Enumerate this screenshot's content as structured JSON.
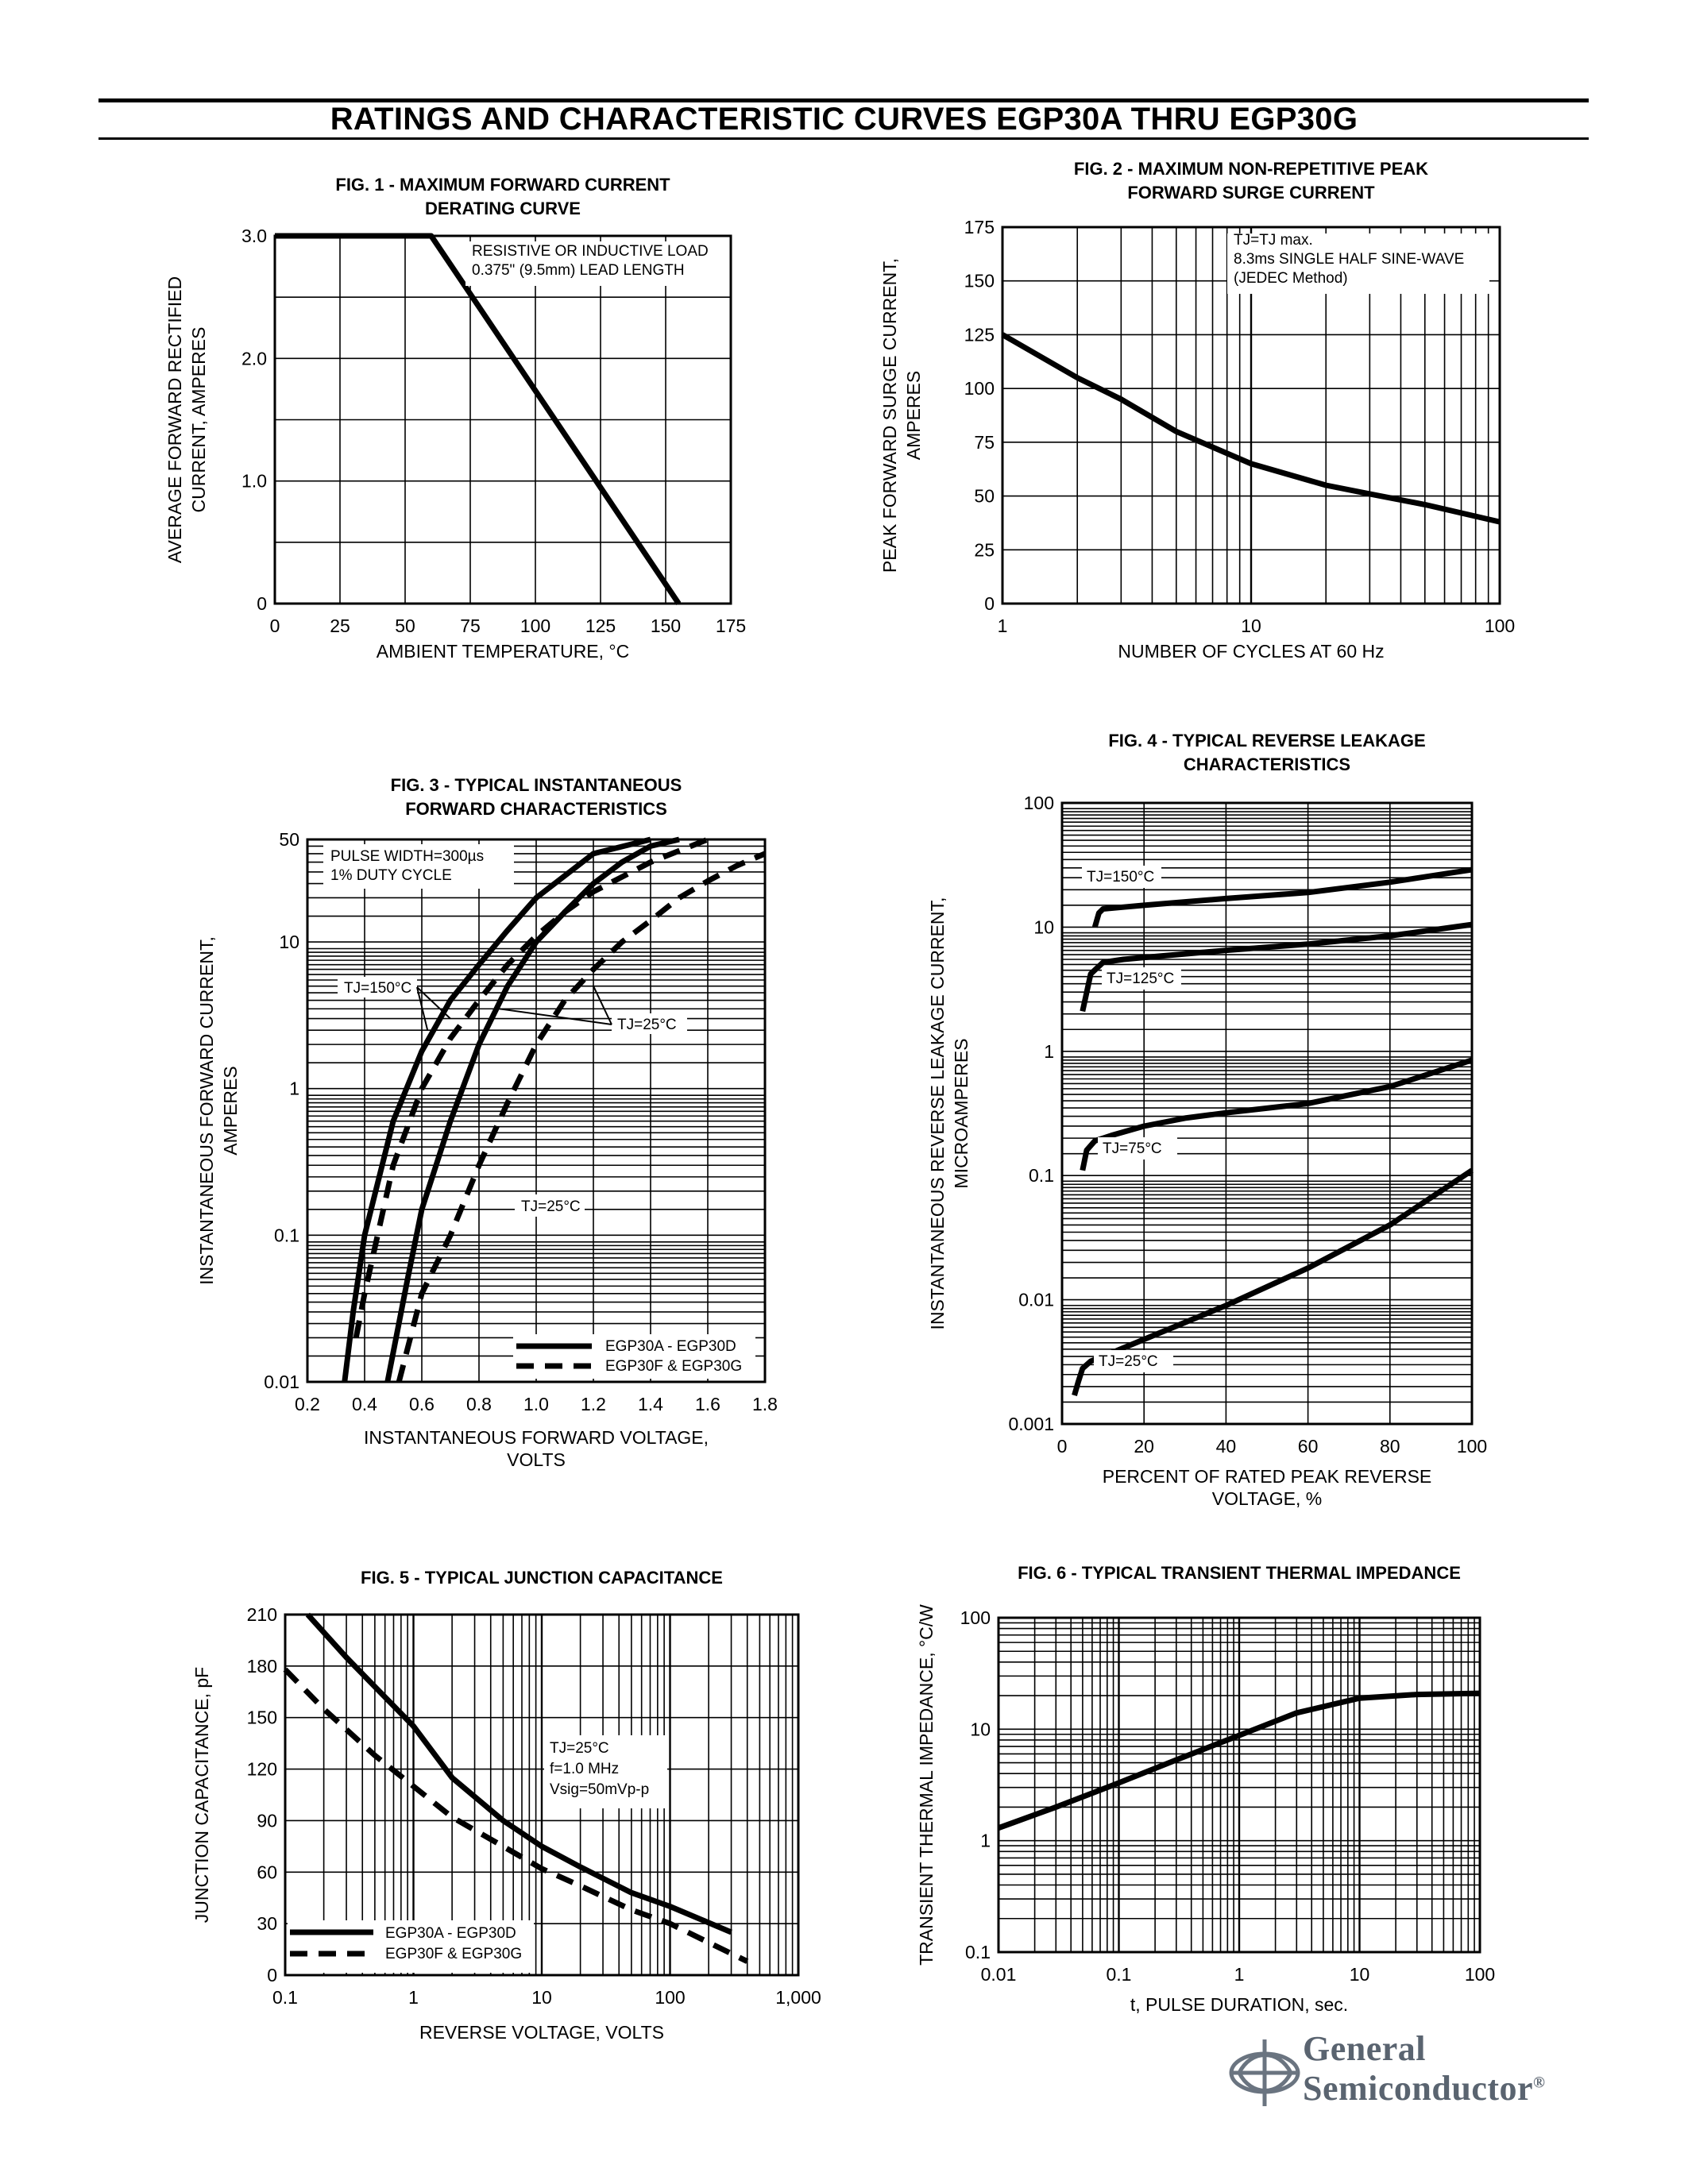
{
  "page": {
    "title": "RATINGS AND CHARACTERISTIC CURVES EGP30A THRU EGP30G",
    "brand_line1": "General",
    "brand_line2": "Semiconductor",
    "brand_mark": "®"
  },
  "chart_data": [
    {
      "id": "fig1",
      "type": "line",
      "title_lines": [
        "FIG. 1 - MAXIMUM FORWARD CURRENT",
        "DERATING CURVE"
      ],
      "xlabel": "AMBIENT TEMPERATURE, °C",
      "ylabel_lines": [
        "AVERAGE FORWARD RECTIFIED",
        "CURRENT, AMPERES"
      ],
      "xscale": "linear",
      "yscale": "linear",
      "xlim": [
        0,
        175
      ],
      "ylim": [
        0,
        3.0
      ],
      "xticks": [
        0,
        25,
        50,
        75,
        100,
        125,
        150,
        175
      ],
      "xtick_labels": [
        "0",
        "25",
        "50",
        "75",
        "100",
        "125",
        "150",
        "175"
      ],
      "yticks": [
        0,
        1.0,
        2.0,
        3.0
      ],
      "ytick_labels": [
        "0",
        "1.0",
        "2.0",
        "3.0"
      ],
      "grid_x": [
        25,
        50,
        75,
        100,
        125,
        150
      ],
      "grid_y": [
        0.5,
        1.0,
        1.5,
        2.0,
        2.5
      ],
      "annotations": [
        "RESISTIVE OR INDUCTIVE LOAD",
        "0.375\" (9.5mm) LEAD LENGTH"
      ],
      "series": [
        {
          "name": "derating",
          "style": "solid",
          "x": [
            0,
            60,
            155
          ],
          "y": [
            3.0,
            3.0,
            0
          ]
        }
      ]
    },
    {
      "id": "fig2",
      "type": "line",
      "title_lines": [
        "FIG. 2 - MAXIMUM NON-REPETITIVE PEAK",
        "FORWARD SURGE CURRENT"
      ],
      "xlabel": "NUMBER OF CYCLES AT 60 Hz",
      "ylabel_lines": [
        "PEAK FORWARD SURGE CURRENT,",
        "AMPERES"
      ],
      "xscale": "log",
      "yscale": "linear",
      "xlim": [
        1,
        100
      ],
      "ylim": [
        0,
        175
      ],
      "xticks": [
        1,
        10,
        100
      ],
      "xtick_labels": [
        "1",
        "10",
        "100"
      ],
      "yticks": [
        0,
        25,
        50,
        75,
        100,
        125,
        150,
        175
      ],
      "ytick_labels": [
        "0",
        "25",
        "50",
        "75",
        "100",
        "125",
        "150",
        "175"
      ],
      "annotations": [
        "TJ=TJ max.",
        "8.3ms SINGLE HALF SINE-WAVE",
        "(JEDEC Method)"
      ],
      "series": [
        {
          "name": "surge",
          "style": "solid",
          "x": [
            1,
            2,
            3,
            5,
            10,
            20,
            30,
            50,
            100
          ],
          "y": [
            125,
            105,
            95,
            80,
            65,
            55,
            51,
            46,
            38
          ]
        }
      ]
    },
    {
      "id": "fig3",
      "type": "line",
      "title_lines": [
        "FIG. 3 - TYPICAL INSTANTANEOUS",
        "FORWARD CHARACTERISTICS"
      ],
      "xlabel_lines": [
        "INSTANTANEOUS FORWARD VOLTAGE,",
        "VOLTS"
      ],
      "ylabel_lines": [
        "INSTANTANEOUS FORWARD CURRENT,",
        "AMPERES"
      ],
      "xscale": "linear",
      "yscale": "log",
      "xlim": [
        0.2,
        1.8
      ],
      "ylim": [
        0.01,
        50
      ],
      "xticks": [
        0.2,
        0.4,
        0.6,
        0.8,
        1.0,
        1.2,
        1.4,
        1.6,
        1.8
      ],
      "xtick_labels": [
        "0.2",
        "0.4",
        "0.6",
        "0.8",
        "1.0",
        "1.2",
        "1.4",
        "1.6",
        "1.8"
      ],
      "yticks": [
        0.01,
        0.1,
        1,
        10,
        50
      ],
      "ytick_labels": [
        "0.01",
        "0.1",
        "1",
        "10",
        "50"
      ],
      "annotations": [
        "PULSE WIDTH=300µs",
        "1% DUTY CYCLE",
        "TJ=150°C",
        "TJ=25°C",
        "TJ=25°C"
      ],
      "legend": [
        "EGP30A - EGP30D",
        "EGP30F & EGP30G"
      ],
      "series": [
        {
          "name": "EGP30A - EGP30D, TJ=150°C",
          "style": "solid",
          "x": [
            0.33,
            0.36,
            0.4,
            0.5,
            0.6,
            0.7,
            0.8,
            0.9,
            1.0,
            1.2,
            1.4
          ],
          "y": [
            0.01,
            0.03,
            0.1,
            0.6,
            1.8,
            4.0,
            7.0,
            12,
            20,
            40,
            50
          ]
        },
        {
          "name": "EGP30A - EGP30D, TJ=25°C",
          "style": "solid",
          "x": [
            0.48,
            0.55,
            0.6,
            0.7,
            0.8,
            0.9,
            1.0,
            1.1,
            1.2,
            1.3,
            1.4,
            1.5
          ],
          "y": [
            0.01,
            0.05,
            0.15,
            0.6,
            2.0,
            5.0,
            10,
            16,
            25,
            35,
            45,
            50
          ]
        },
        {
          "name": "EGP30F & EGP30G, TJ=150°C",
          "style": "dashed",
          "x": [
            0.37,
            0.4,
            0.5,
            0.6,
            0.7,
            0.8,
            0.9,
            1.0,
            1.1,
            1.2,
            1.4,
            1.6
          ],
          "y": [
            0.02,
            0.04,
            0.3,
            1.0,
            2.2,
            4.0,
            7.0,
            11,
            16,
            22,
            35,
            50
          ]
        },
        {
          "name": "EGP30F & EGP30G, TJ=25°C",
          "style": "dashed",
          "x": [
            0.52,
            0.6,
            0.7,
            0.8,
            0.9,
            1.0,
            1.1,
            1.2,
            1.3,
            1.4,
            1.5,
            1.6,
            1.7,
            1.8
          ],
          "y": [
            0.01,
            0.04,
            0.1,
            0.3,
            0.8,
            2.0,
            4.0,
            6.5,
            10,
            14,
            20,
            26,
            33,
            40
          ]
        }
      ]
    },
    {
      "id": "fig4",
      "type": "line",
      "title_lines": [
        "FIG. 4 - TYPICAL REVERSE LEAKAGE",
        "CHARACTERISTICS"
      ],
      "xlabel_lines": [
        "PERCENT OF RATED PEAK REVERSE",
        "VOLTAGE, %"
      ],
      "ylabel_lines": [
        "INSTANTANEOUS REVERSE LEAKAGE CURRENT,",
        "MICROAMPERES"
      ],
      "xscale": "linear",
      "yscale": "log",
      "xlim": [
        0,
        100
      ],
      "ylim": [
        0.001,
        100
      ],
      "xticks": [
        0,
        20,
        40,
        60,
        80,
        100
      ],
      "xtick_labels": [
        "0",
        "20",
        "40",
        "60",
        "80",
        "100"
      ],
      "yticks": [
        0.001,
        0.01,
        0.1,
        1,
        10,
        100
      ],
      "ytick_labels": [
        "0.001",
        "0.01",
        "0.1",
        "1",
        "10",
        "100"
      ],
      "annotations": [
        "TJ=150°C",
        "TJ=125°C",
        "TJ=75°C",
        "TJ=25°C"
      ],
      "series": [
        {
          "name": "TJ=150°C",
          "style": "solid",
          "x": [
            8,
            9,
            10,
            15,
            20,
            40,
            60,
            80,
            100
          ],
          "y": [
            10,
            13,
            14,
            14.5,
            15,
            17,
            19,
            23,
            29
          ]
        },
        {
          "name": "TJ=125°C",
          "style": "solid",
          "x": [
            5,
            7,
            10,
            15,
            20,
            40,
            60,
            80,
            100
          ],
          "y": [
            2.1,
            4.2,
            5.2,
            5.5,
            5.7,
            6.5,
            7.3,
            8.5,
            10.5
          ]
        },
        {
          "name": "TJ=75°C",
          "style": "solid",
          "x": [
            5,
            6,
            8,
            12,
            20,
            30,
            40,
            60,
            80,
            100
          ],
          "y": [
            0.11,
            0.16,
            0.19,
            0.21,
            0.25,
            0.29,
            0.32,
            0.38,
            0.52,
            0.85
          ]
        },
        {
          "name": "TJ=25°C",
          "style": "solid",
          "x": [
            3,
            4,
            5,
            7,
            10,
            20,
            40,
            60,
            80,
            100
          ],
          "y": [
            0.0017,
            0.0022,
            0.0028,
            0.0032,
            0.0035,
            0.0048,
            0.009,
            0.018,
            0.04,
            0.11
          ]
        }
      ]
    },
    {
      "id": "fig5",
      "type": "line",
      "title_lines": [
        "FIG. 5 - TYPICAL JUNCTION CAPACITANCE"
      ],
      "xlabel": "REVERSE VOLTAGE, VOLTS",
      "ylabel": "JUNCTION CAPACITANCE, pF",
      "xscale": "log",
      "yscale": "linear",
      "xlim": [
        0.1,
        1000
      ],
      "ylim": [
        0,
        210
      ],
      "xticks": [
        0.1,
        1,
        10,
        100,
        1000
      ],
      "xtick_labels": [
        "0.1",
        "1",
        "10",
        "100",
        "1,000"
      ],
      "yticks": [
        0,
        30,
        60,
        90,
        120,
        150,
        180,
        210
      ],
      "ytick_labels": [
        "0",
        "30",
        "60",
        "90",
        "120",
        "150",
        "180",
        "210"
      ],
      "annotations": [
        "TJ=25°C",
        "f=1.0 MHz",
        "Vsig=50mVp-p"
      ],
      "legend": [
        "EGP30A - EGP30D",
        "EGP30F & EGP30G"
      ],
      "series": [
        {
          "name": "EGP30A - EGP30D",
          "style": "solid",
          "x": [
            0.15,
            0.3,
            0.5,
            1,
            2,
            5,
            10,
            20,
            50,
            100,
            300
          ],
          "y": [
            210,
            185,
            168,
            145,
            115,
            90,
            75,
            63,
            48,
            40,
            25
          ]
        },
        {
          "name": "EGP30F & EGP30G",
          "style": "dashed",
          "x": [
            0.1,
            0.2,
            0.5,
            1,
            2,
            5,
            10,
            20,
            50,
            100,
            400
          ],
          "y": [
            178,
            155,
            128,
            110,
            92,
            75,
            62,
            52,
            38,
            30,
            8
          ]
        }
      ]
    },
    {
      "id": "fig6",
      "type": "line",
      "title_lines": [
        "FIG. 6 - TYPICAL TRANSIENT THERMAL IMPEDANCE"
      ],
      "xlabel": "t, PULSE DURATION, sec.",
      "ylabel": "TRANSIENT THERMAL IMPEDANCE, °C/W",
      "xscale": "log",
      "yscale": "log",
      "xlim": [
        0.01,
        100
      ],
      "ylim": [
        0.1,
        100
      ],
      "xticks": [
        0.01,
        0.1,
        1,
        10,
        100
      ],
      "xtick_labels": [
        "0.01",
        "0.1",
        "1",
        "10",
        "100"
      ],
      "yticks": [
        0.1,
        1,
        10,
        100
      ],
      "ytick_labels": [
        "0.1",
        "1",
        "10",
        "100"
      ],
      "series": [
        {
          "name": "thermal impedance",
          "style": "solid",
          "x": [
            0.01,
            0.03,
            0.1,
            0.3,
            1,
            3,
            10,
            30,
            100
          ],
          "y": [
            1.3,
            2.0,
            3.3,
            5.3,
            8.8,
            14,
            19,
            20.5,
            21
          ]
        }
      ]
    }
  ]
}
